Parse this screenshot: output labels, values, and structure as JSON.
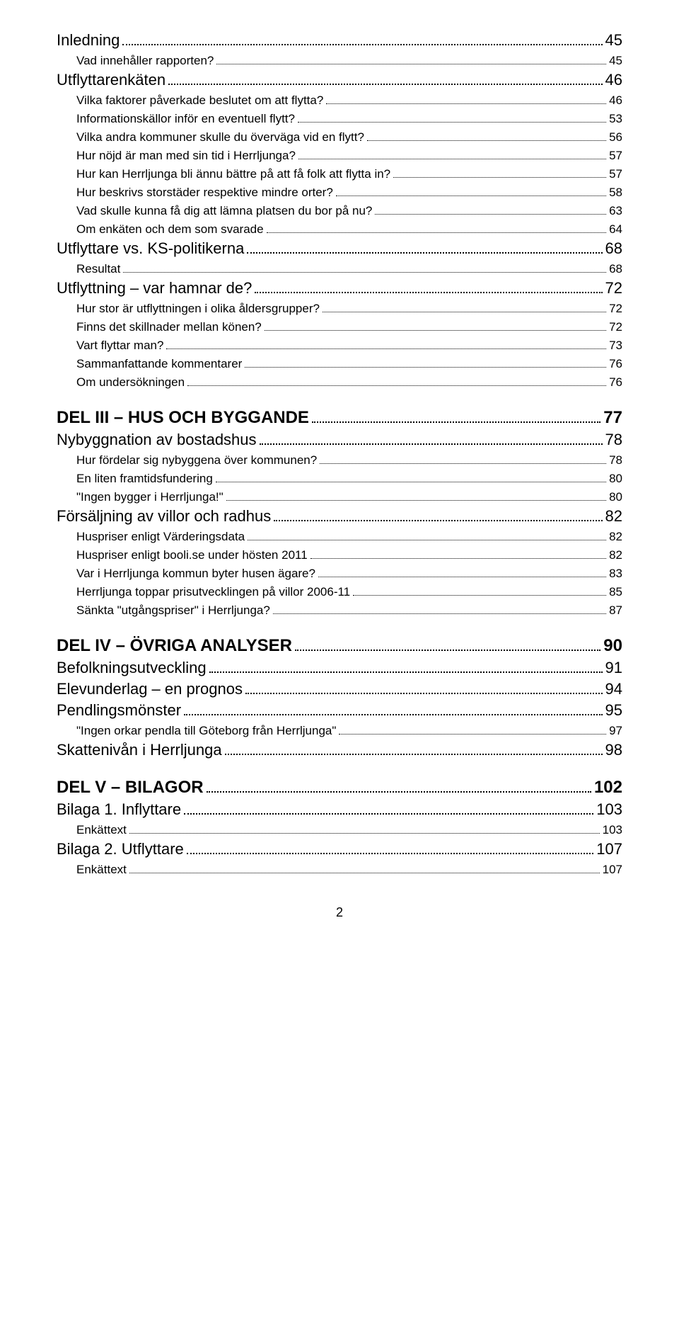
{
  "toc": [
    {
      "level": 2,
      "label": "Inledning",
      "page": "45"
    },
    {
      "level": 3,
      "label": "Vad innehåller rapporten?",
      "page": "45"
    },
    {
      "level": 2,
      "label": "Utflyttarenkäten",
      "page": "46"
    },
    {
      "level": 3,
      "label": "Vilka faktorer påverkade beslutet om att flytta?",
      "page": "46"
    },
    {
      "level": 3,
      "label": "Informationskällor inför en eventuell flytt?",
      "page": "53"
    },
    {
      "level": 3,
      "label": "Vilka andra kommuner skulle du överväga vid en flytt?",
      "page": "56"
    },
    {
      "level": 3,
      "label": "Hur nöjd är man med sin tid i Herrljunga?",
      "page": "57"
    },
    {
      "level": 3,
      "label": "Hur kan Herrljunga bli ännu bättre på att få folk att flytta in?",
      "page": "57"
    },
    {
      "level": 3,
      "label": "Hur beskrivs storstäder respektive mindre orter?",
      "page": "58"
    },
    {
      "level": 3,
      "label": "Vad skulle kunna få dig att lämna platsen du bor på nu?",
      "page": "63"
    },
    {
      "level": 3,
      "label": "Om enkäten och dem som svarade",
      "page": "64"
    },
    {
      "level": 2,
      "label": "Utflyttare vs. KS-politikerna",
      "page": "68"
    },
    {
      "level": 3,
      "label": "Resultat",
      "page": "68"
    },
    {
      "level": 2,
      "label": "Utflyttning – var hamnar de?",
      "page": "72"
    },
    {
      "level": 3,
      "label": "Hur stor är utflyttningen i olika åldersgrupper?",
      "page": "72"
    },
    {
      "level": 3,
      "label": "Finns det skillnader mellan könen?",
      "page": "72"
    },
    {
      "level": 3,
      "label": "Vart flyttar man?",
      "page": "73"
    },
    {
      "level": 3,
      "label": "Sammanfattande kommentarer",
      "page": "76"
    },
    {
      "level": 3,
      "label": "Om undersökningen",
      "page": "76"
    },
    {
      "level": 1,
      "label": "DEL III – HUS OCH BYGGANDE",
      "page": "77"
    },
    {
      "level": 2,
      "label": "Nybyggnation av bostadshus",
      "page": "78"
    },
    {
      "level": 3,
      "label": "Hur fördelar sig nybyggena över kommunen?",
      "page": "78"
    },
    {
      "level": 3,
      "label": "En liten framtidsfundering",
      "page": "80"
    },
    {
      "level": 3,
      "label": "\"Ingen bygger i Herrljunga!\"",
      "page": "80"
    },
    {
      "level": 2,
      "label": "Försäljning av villor och radhus",
      "page": "82"
    },
    {
      "level": 3,
      "label": "Huspriser enligt Värderingsdata",
      "page": "82"
    },
    {
      "level": 3,
      "label": "Huspriser enligt booli.se under hösten 2011",
      "page": "82"
    },
    {
      "level": 3,
      "label": "Var i Herrljunga kommun byter husen ägare?",
      "page": "83"
    },
    {
      "level": 3,
      "label": "Herrljunga toppar prisutvecklingen på villor 2006-11",
      "page": "85"
    },
    {
      "level": 3,
      "label": "Sänkta \"utgångspriser\" i Herrljunga?",
      "page": "87"
    },
    {
      "level": 1,
      "label": "DEL IV – ÖVRIGA ANALYSER",
      "page": "90"
    },
    {
      "level": 2,
      "label": "Befolkningsutveckling",
      "page": "91"
    },
    {
      "level": 2,
      "label": "Elevunderlag – en prognos",
      "page": "94"
    },
    {
      "level": 2,
      "label": "Pendlingsmönster",
      "page": "95"
    },
    {
      "level": 3,
      "label": "\"Ingen orkar pendla till Göteborg från Herrljunga\"",
      "page": "97"
    },
    {
      "level": 2,
      "label": "Skattenivån i Herrljunga",
      "page": "98"
    },
    {
      "level": 1,
      "label": "DEL V – BILAGOR",
      "page": "102"
    },
    {
      "level": 2,
      "label": "Bilaga 1. Inflyttare",
      "page": "103"
    },
    {
      "level": 3,
      "label": "Enkättext",
      "page": "103"
    },
    {
      "level": 2,
      "label": "Bilaga 2. Utflyttare",
      "page": "107"
    },
    {
      "level": 3,
      "label": "Enkättext",
      "page": "107"
    }
  ],
  "pagenum": "2"
}
